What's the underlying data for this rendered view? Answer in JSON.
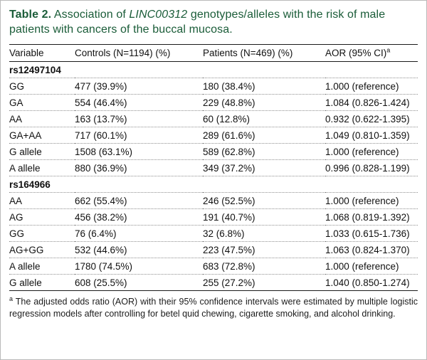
{
  "caption": {
    "label": "Table 2.",
    "before_italic": " Association of ",
    "gene": "LINC00312",
    "after_italic": " genotypes/alleles with the risk of male patients with cancers of the buccal mucosa."
  },
  "colors": {
    "caption_green": "#1a5c38",
    "rule_black": "#1a1a1a",
    "dotted_gray": "#8f8f8f"
  },
  "table": {
    "headers": [
      "Variable",
      "Controls (N=1194) (%)",
      "Patients (N=469) (%)",
      "AOR (95% CI)"
    ],
    "aor_superscript": "a",
    "sections": [
      {
        "name": "rs12497104",
        "rows": [
          [
            "GG",
            "477 (39.9%)",
            "180 (38.4%)",
            "1.000 (reference)"
          ],
          [
            "GA",
            "554 (46.4%)",
            "229 (48.8%)",
            "1.084 (0.826-1.424)"
          ],
          [
            "AA",
            "163 (13.7%)",
            "60 (12.8%)",
            "0.932 (0.622-1.395)"
          ],
          [
            "GA+AA",
            "717 (60.1%)",
            "289 (61.6%)",
            "1.049 (0.810-1.359)"
          ],
          [
            "G allele",
            "1508 (63.1%)",
            "589 (62.8%)",
            "1.000 (reference)"
          ],
          [
            "A allele",
            "880 (36.9%)",
            "349 (37.2%)",
            "0.996 (0.828-1.199)"
          ]
        ]
      },
      {
        "name": "rs164966",
        "rows": [
          [
            "AA",
            "662 (55.4%)",
            "246 (52.5%)",
            "1.000 (reference)"
          ],
          [
            "AG",
            "456 (38.2%)",
            "191 (40.7%)",
            "1.068 (0.819-1.392)"
          ],
          [
            "GG",
            "76 (6.4%)",
            "32 (6.8%)",
            "1.033 (0.615-1.736)"
          ],
          [
            "AG+GG",
            "532 (44.6%)",
            "223 (47.5%)",
            "1.063 (0.824-1.370)"
          ],
          [
            "A allele",
            "1780 (74.5%)",
            "683 (72.8%)",
            "1.000 (reference)"
          ],
          [
            "G allele",
            "608 (25.5%)",
            "255 (27.2%)",
            "1.040 (0.850-1.274)"
          ]
        ]
      }
    ]
  },
  "footnote": {
    "marker": "a",
    "text": " The adjusted odds ratio (AOR) with their 95% confidence intervals were estimated by multiple logistic regression models after controlling for betel quid chewing, cigarette smoking, and alcohol drinking."
  }
}
